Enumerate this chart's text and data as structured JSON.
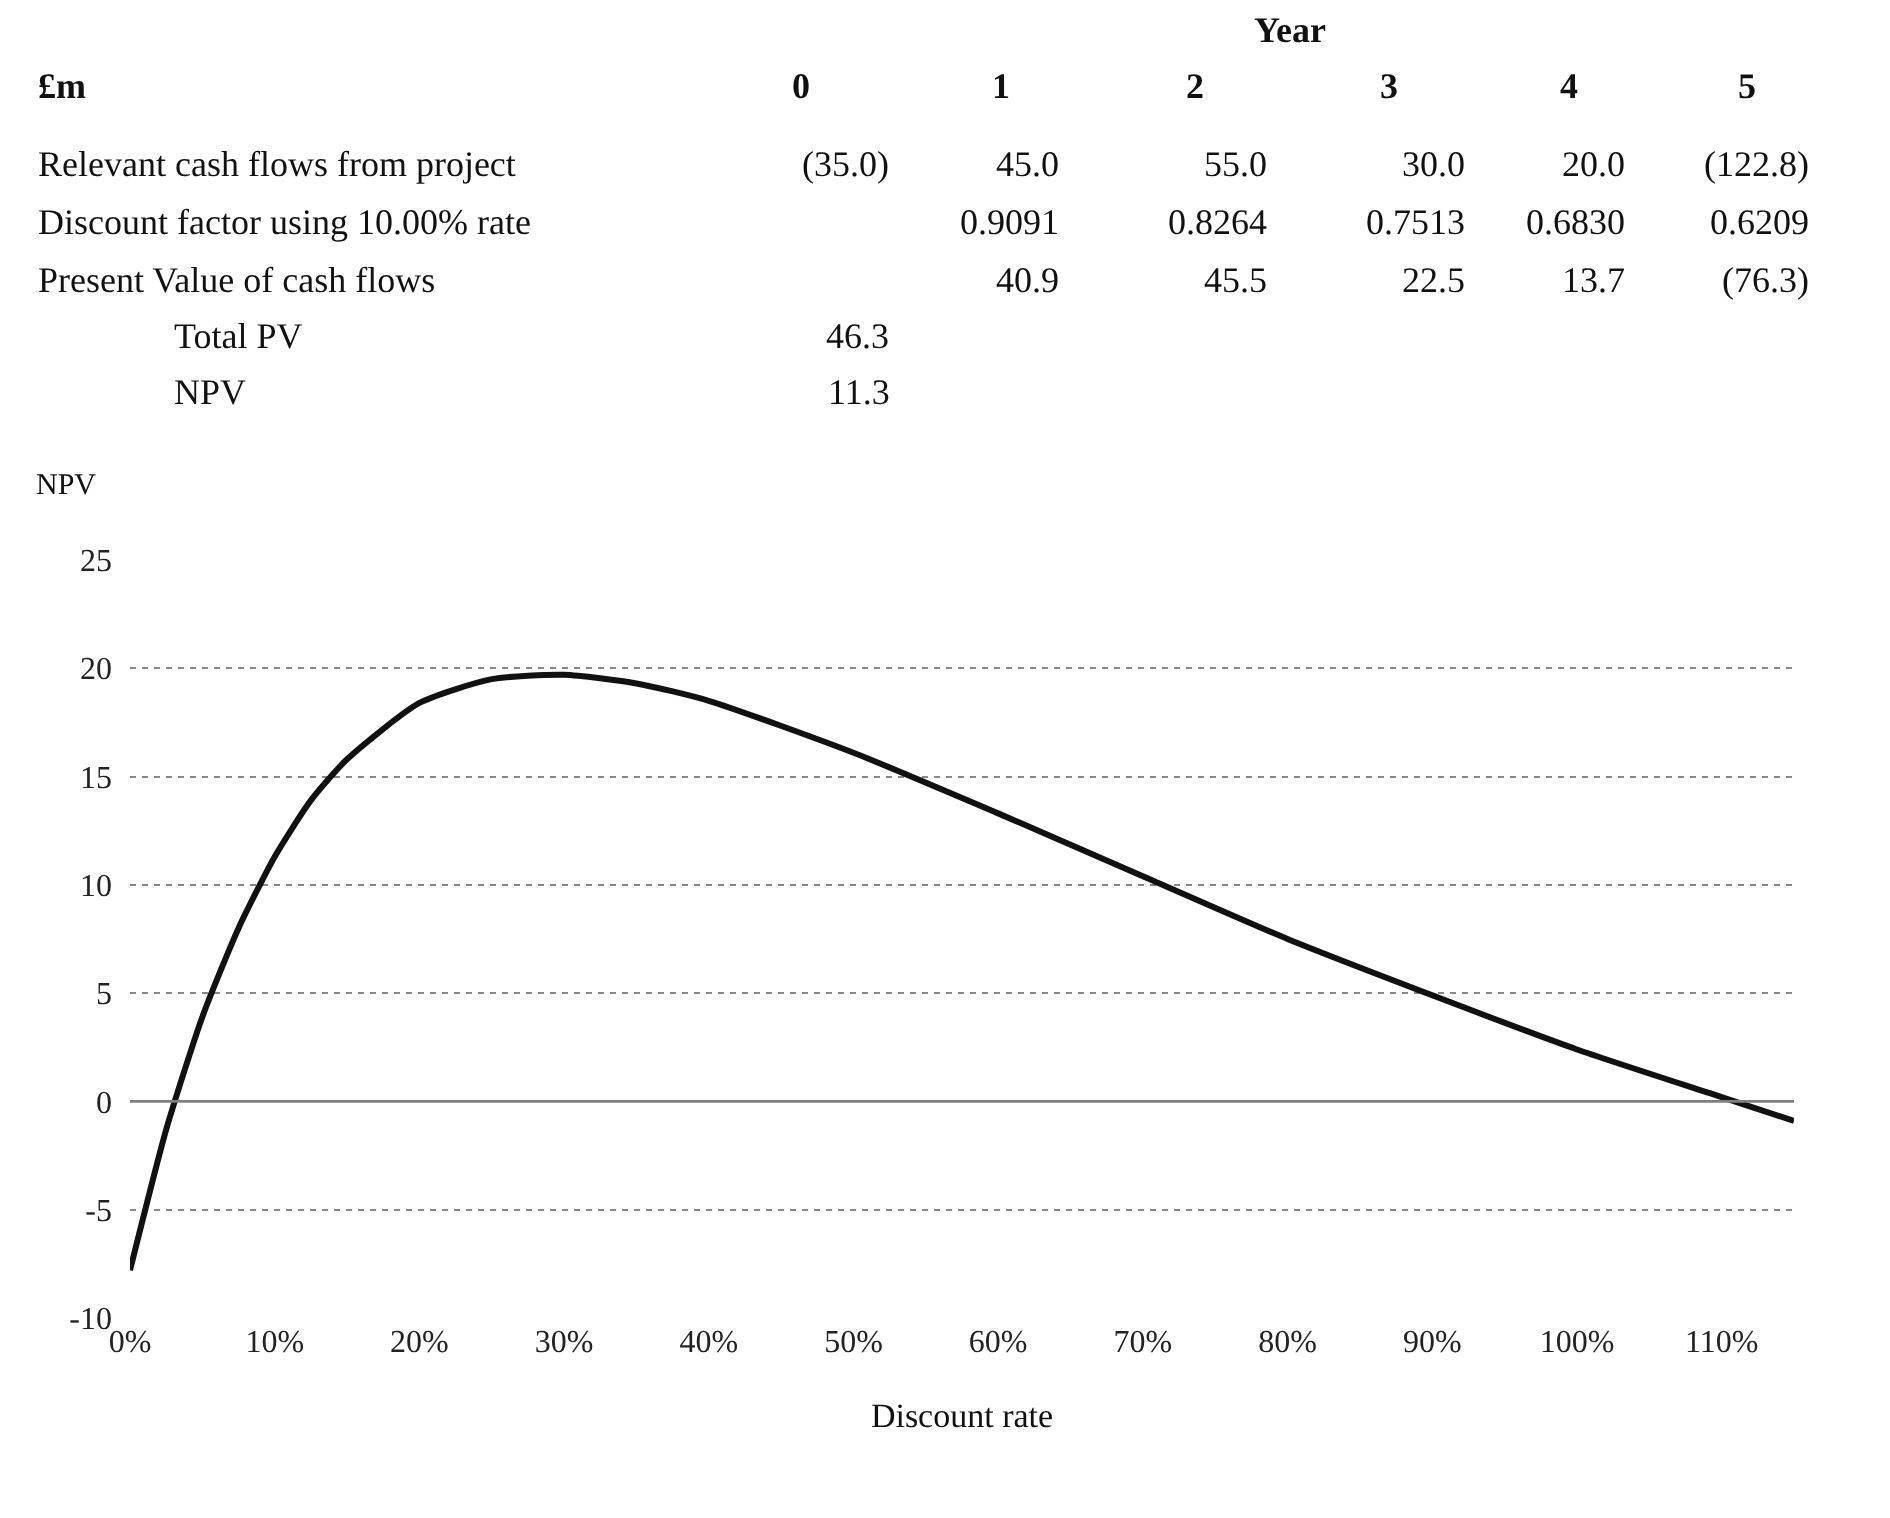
{
  "chart_data": {
    "type": "line",
    "ylabel": "NPV",
    "xlabel": "Discount rate",
    "x": [
      0,
      2.5,
      5,
      7.5,
      10,
      12.5,
      15,
      20,
      25,
      30,
      35,
      40,
      50,
      60,
      70,
      80,
      90,
      100,
      110,
      115
    ],
    "series": [
      {
        "color": "#111111",
        "values": [
          -7.8,
          -1.3,
          3.9,
          8.0,
          11.3,
          13.9,
          15.8,
          18.4,
          19.5,
          19.7,
          19.3,
          18.5,
          16.1,
          13.3,
          10.4,
          7.5,
          4.9,
          2.4,
          0.2,
          -0.9
        ]
      }
    ],
    "xlim": [
      0,
      115
    ],
    "ylim": [
      -10,
      25
    ],
    "xticks": [
      {
        "value": 0,
        "label": "0%"
      },
      {
        "value": 10,
        "label": "10%"
      },
      {
        "value": 20,
        "label": "20%"
      },
      {
        "value": 30,
        "label": "30%"
      },
      {
        "value": 40,
        "label": "40%"
      },
      {
        "value": 50,
        "label": "50%"
      },
      {
        "value": 60,
        "label": "60%"
      },
      {
        "value": 70,
        "label": "70%"
      },
      {
        "value": 80,
        "label": "80%"
      },
      {
        "value": 90,
        "label": "90%"
      },
      {
        "value": 100,
        "label": "100%"
      },
      {
        "value": 110,
        "label": "110%"
      }
    ],
    "yticks": [
      -10,
      -5,
      0,
      5,
      10,
      15,
      20,
      25
    ],
    "grid": "y",
    "marker": "none",
    "line_style": "solid",
    "legend": false,
    "ref_lines": [
      {
        "axis": "y",
        "value": 0,
        "color": "#808080",
        "line_style": "solid"
      }
    ],
    "annotations": [
      "Year",
      "£m",
      "0",
      "1",
      "2",
      "3",
      "4",
      "5",
      "Relevant cash flows from project",
      "(35.0)",
      "45.0",
      "55.0",
      "30.0",
      "20.0",
      "(122.8)",
      "Discount factor using 10.00% rate",
      "0.9091",
      "0.8264",
      "0.7513",
      "0.6830",
      "0.6209",
      "Present Value of cash flows",
      "40.9",
      "45.5",
      "22.5",
      "13.7",
      "(76.3)",
      "Total PV",
      "46.3",
      "NPV",
      "11.3"
    ]
  }
}
